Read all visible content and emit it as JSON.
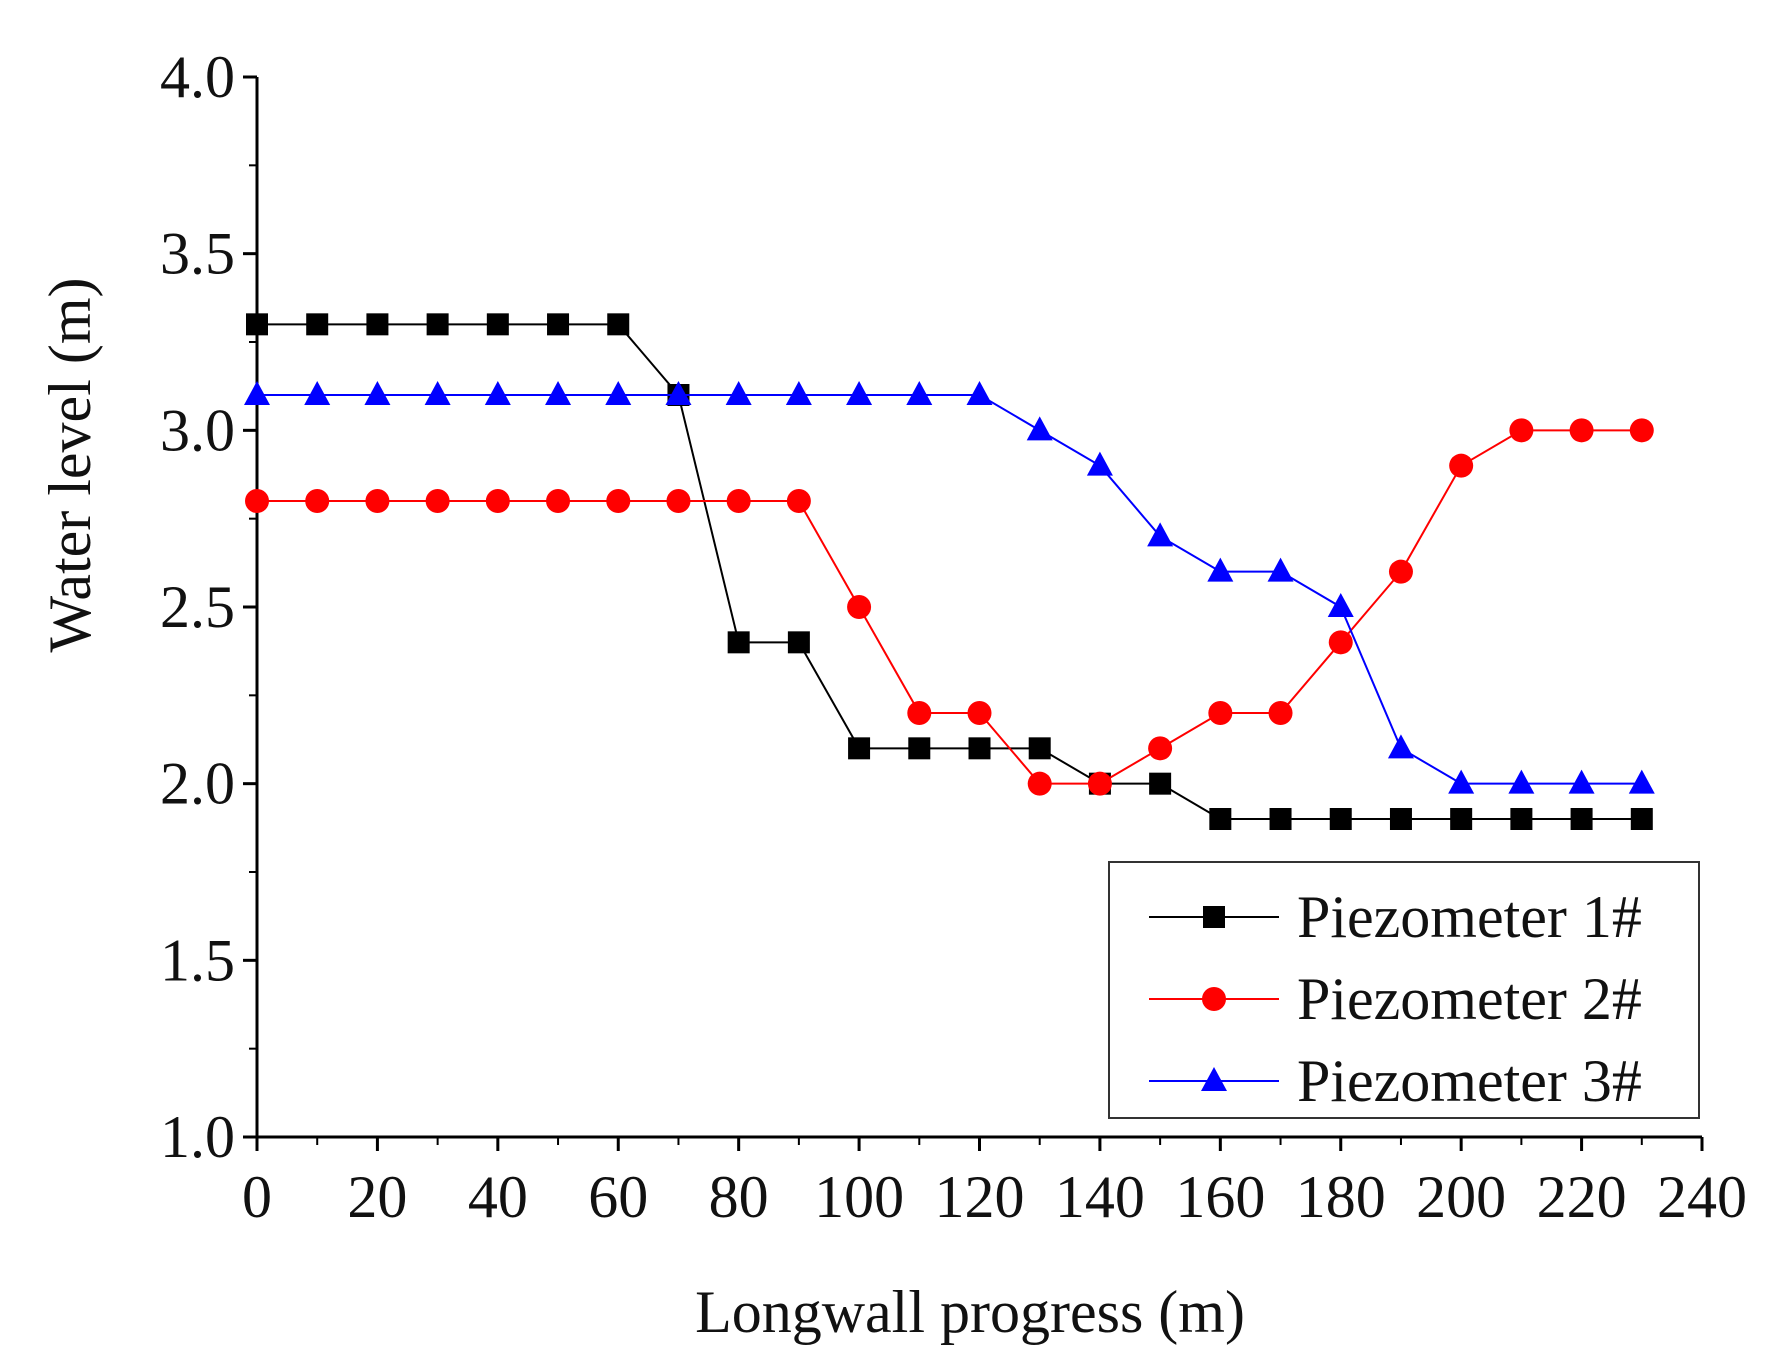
{
  "chart_data": {
    "type": "line",
    "title": "",
    "xlabel": "Longwall progress (m)",
    "ylabel": "Water level (m)",
    "xlim": [
      0,
      240
    ],
    "ylim": [
      1.0,
      4.0
    ],
    "xticks": [
      "0",
      "20",
      "40",
      "60",
      "80",
      "100",
      "120",
      "140",
      "160",
      "180",
      "200",
      "220",
      "240"
    ],
    "yticks": [
      "1.0",
      "1.5",
      "2.0",
      "2.5",
      "3.0",
      "3.5",
      "4.0"
    ],
    "x": [
      0,
      10,
      20,
      30,
      40,
      50,
      60,
      70,
      80,
      90,
      100,
      110,
      120,
      130,
      140,
      150,
      160,
      170,
      180,
      190,
      200,
      210,
      220,
      230
    ],
    "grid": false,
    "legend_position": "bottom-right",
    "series": [
      {
        "name": "Piezometer 1#",
        "color": "#000000",
        "marker": "square",
        "values": [
          3.3,
          3.3,
          3.3,
          3.3,
          3.3,
          3.3,
          3.3,
          3.1,
          2.4,
          2.4,
          2.1,
          2.1,
          2.1,
          2.1,
          2.0,
          2.0,
          1.9,
          1.9,
          1.9,
          1.9,
          1.9,
          1.9,
          1.9,
          1.9
        ]
      },
      {
        "name": "Piezometer 2#",
        "color": "#ff0000",
        "marker": "circle",
        "values": [
          2.8,
          2.8,
          2.8,
          2.8,
          2.8,
          2.8,
          2.8,
          2.8,
          2.8,
          2.8,
          2.5,
          2.2,
          2.2,
          2.0,
          2.0,
          2.1,
          2.2,
          2.2,
          2.4,
          2.6,
          2.9,
          3.0,
          3.0,
          3.0
        ]
      },
      {
        "name": "Piezometer 3#",
        "color": "#0000ff",
        "marker": "triangle",
        "values": [
          3.1,
          3.1,
          3.1,
          3.1,
          3.1,
          3.1,
          3.1,
          3.1,
          3.1,
          3.1,
          3.1,
          3.1,
          3.1,
          3.0,
          2.9,
          2.7,
          2.6,
          2.6,
          2.5,
          2.1,
          2.0,
          2.0,
          2.0,
          2.0
        ]
      }
    ]
  }
}
